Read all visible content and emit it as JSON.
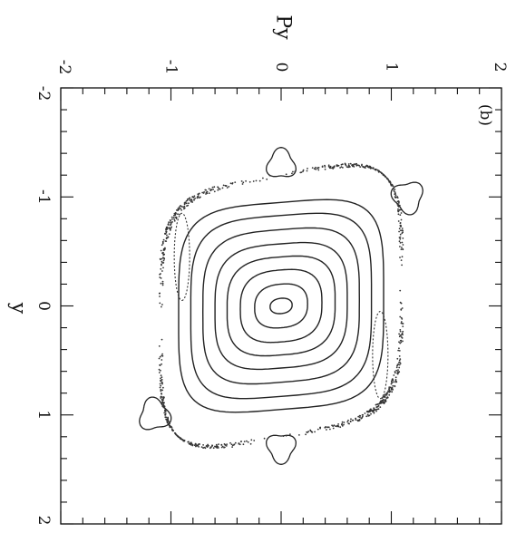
{
  "chart_data": {
    "type": "scatter",
    "panel_label": "(b)",
    "xlabel": "y",
    "ylabel": "Py",
    "xlim": [
      -2,
      2
    ],
    "ylim": [
      -2,
      2
    ],
    "x_ticks": [
      "-2",
      "-1",
      "0",
      "1",
      "2"
    ],
    "y_ticks": [
      "-2",
      "-1",
      "0",
      "1",
      "2"
    ],
    "orientation": "rotated 90 degrees clockwise",
    "grid": false,
    "curves": {
      "central_islands": [
        {
          "center": [
            0.0,
            0.0
          ],
          "a": 0.07,
          "b": 0.1
        },
        {
          "center": [
            0.0,
            0.0
          ],
          "a": 0.2,
          "b": 0.24
        },
        {
          "center": [
            0.0,
            0.0
          ],
          "a": 0.33,
          "b": 0.37
        },
        {
          "center": [
            0.0,
            0.0
          ],
          "a": 0.45,
          "b": 0.49
        },
        {
          "center": [
            0.0,
            0.0
          ],
          "a": 0.57,
          "b": 0.6
        },
        {
          "center": [
            0.0,
            0.0
          ],
          "a": 0.7,
          "b": 0.71
        },
        {
          "center": [
            0.0,
            0.0
          ],
          "a": 0.83,
          "b": 0.82
        },
        {
          "center": [
            0.0,
            0.0
          ],
          "a": 0.95,
          "b": 0.93
        }
      ],
      "resonance_islands": [
        {
          "center": [
            -1.0,
            1.15
          ],
          "size": 0.14
        },
        {
          "center": [
            -1.3,
            0.0
          ],
          "size": 0.13
        },
        {
          "center": [
            1.0,
            -1.15
          ],
          "size": 0.14
        },
        {
          "center": [
            1.3,
            0.0
          ],
          "size": 0.13
        }
      ],
      "elongated_islands": [
        {
          "center": [
            -0.45,
            -0.9
          ],
          "length": 0.4,
          "width": 0.07
        },
        {
          "center": [
            0.45,
            0.9
          ],
          "length": 0.4,
          "width": 0.07
        }
      ],
      "chaotic_boundary": {
        "a": 1.2,
        "b": 1.4
      }
    }
  }
}
